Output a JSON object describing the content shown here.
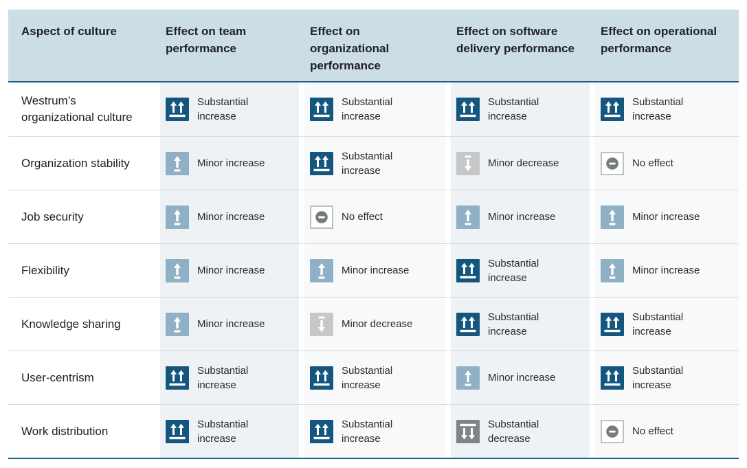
{
  "table": {
    "columns": [
      {
        "label": "Aspect of culture"
      },
      {
        "label": "Effect on team performance"
      },
      {
        "label": "Effect on organizational performance"
      },
      {
        "label": "Effect on software delivery performance"
      },
      {
        "label": "Effect on operational performance"
      }
    ],
    "effect_types": {
      "substantial_increase": {
        "label": "Substantial increase",
        "icon": "double-up-arrows-icon",
        "color": "#15567e"
      },
      "minor_increase": {
        "label": "Minor increase",
        "icon": "single-up-arrow-icon",
        "color": "#8fb0c5"
      },
      "minor_decrease": {
        "label": "Minor decrease",
        "icon": "single-down-arrow-icon",
        "color": "#c5c7c9"
      },
      "substantial_decrease": {
        "label": "Substantial decrease",
        "icon": "double-down-arrows-icon",
        "color": "#7f8487"
      },
      "no_effect": {
        "label": "No effect",
        "icon": "minus-circle-icon",
        "color": "#767b7e",
        "border": "#bdc1c4"
      }
    },
    "rows": [
      {
        "aspect": "Westrum’s organizational culture",
        "effects": [
          "substantial_increase",
          "substantial_increase",
          "substantial_increase",
          "substantial_increase"
        ]
      },
      {
        "aspect": "Organization stability",
        "effects": [
          "minor_increase",
          "substantial_increase",
          "minor_decrease",
          "no_effect"
        ]
      },
      {
        "aspect": "Job security",
        "effects": [
          "minor_increase",
          "no_effect",
          "minor_increase",
          "minor_increase"
        ]
      },
      {
        "aspect": "Flexibility",
        "effects": [
          "minor_increase",
          "minor_increase",
          "substantial_increase",
          "minor_increase"
        ]
      },
      {
        "aspect": "Knowledge sharing",
        "effects": [
          "minor_increase",
          "minor_decrease",
          "substantial_increase",
          "substantial_increase"
        ]
      },
      {
        "aspect": "User-centrism",
        "effects": [
          "substantial_increase",
          "substantial_increase",
          "minor_increase",
          "substantial_increase"
        ]
      },
      {
        "aspect": "Work distribution",
        "effects": [
          "substantial_increase",
          "substantial_increase",
          "substantial_decrease",
          "no_effect"
        ]
      }
    ]
  },
  "colors": {
    "header_bg": "#ccdde6",
    "accent_border": "#1d5c84",
    "row_divider": "#d8dadb",
    "column_tint_strong": "#eef2f5",
    "column_tint_light": "#f7f9fa",
    "text": "#202124"
  }
}
